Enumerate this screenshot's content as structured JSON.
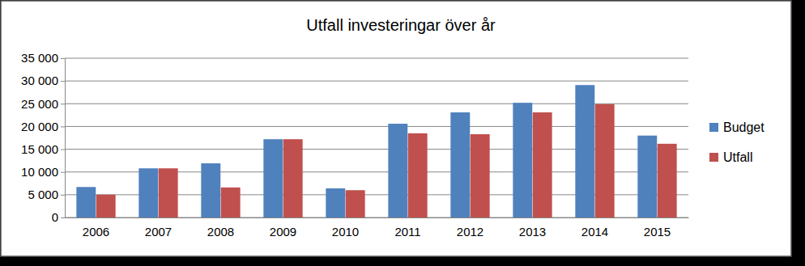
{
  "chart_data": {
    "type": "bar",
    "title": "Utfall investeringar över år",
    "categories": [
      "2006",
      "2007",
      "2008",
      "2009",
      "2010",
      "2011",
      "2012",
      "2013",
      "2014",
      "2015"
    ],
    "series": [
      {
        "name": "Budget",
        "color": "#4f81bd",
        "values": [
          6700,
          10800,
          11900,
          17200,
          6400,
          20600,
          23100,
          25200,
          29100,
          18000
        ]
      },
      {
        "name": "Utfall",
        "color": "#c0504d",
        "values": [
          5000,
          10800,
          6600,
          17200,
          6000,
          18500,
          18300,
          23100,
          24900,
          16200
        ]
      }
    ],
    "ylim": [
      0,
      35000
    ],
    "yticks": [
      0,
      {
        "value": 5000,
        "label": "5 000"
      },
      {
        "value": 10000,
        "label": "10 000"
      },
      {
        "value": 15000,
        "label": "15 000"
      },
      {
        "value": 20000,
        "label": "20 000"
      },
      {
        "value": 25000,
        "label": "25 000"
      },
      {
        "value": 30000,
        "label": "30 000"
      },
      {
        "value": 35000,
        "label": "35 000"
      }
    ],
    "grid": true,
    "legend": "right"
  }
}
